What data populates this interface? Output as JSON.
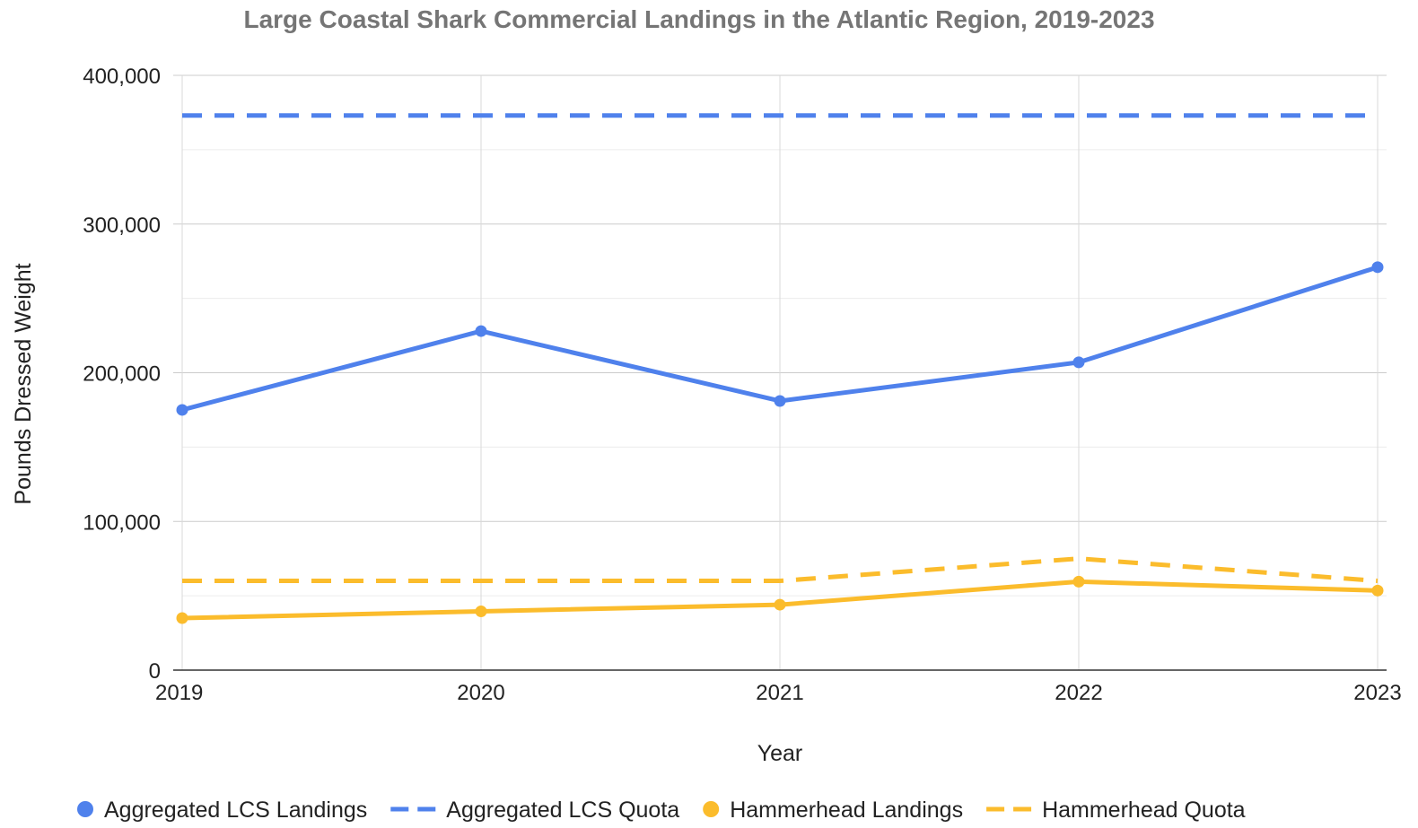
{
  "chart_data": {
    "type": "line",
    "title": "Large Coastal Shark Commercial Landings in the Atlantic Region, 2019-2023",
    "xlabel": "Year",
    "ylabel": "Pounds Dressed Weight",
    "x": [
      "2019",
      "2020",
      "2021",
      "2022",
      "2023"
    ],
    "ylim": [
      0,
      400000
    ],
    "yticks": [
      0,
      100000,
      200000,
      300000,
      400000
    ],
    "ytick_labels": [
      "0",
      "100,000",
      "200,000",
      "300,000",
      "400,000"
    ],
    "grid": true,
    "legend_position": "bottom",
    "series": [
      {
        "name": "Aggregated LCS Landings",
        "values": [
          175000,
          228000,
          181000,
          207000,
          271000
        ],
        "color": "#4f81ec",
        "style": "solid",
        "markers": true
      },
      {
        "name": "Aggregated LCS Quota",
        "values": [
          373000,
          373000,
          373000,
          373000,
          373000
        ],
        "color": "#4f81ec",
        "style": "dashed",
        "markers": false
      },
      {
        "name": "Hammerhead Landings",
        "values": [
          35000,
          39500,
          44000,
          59500,
          53500
        ],
        "color": "#fbbc2c",
        "style": "solid",
        "markers": true
      },
      {
        "name": "Hammerhead Quota",
        "values": [
          60000,
          60000,
          60000,
          75000,
          60000
        ],
        "color": "#fbbc2c",
        "style": "dashed",
        "markers": false
      }
    ]
  }
}
